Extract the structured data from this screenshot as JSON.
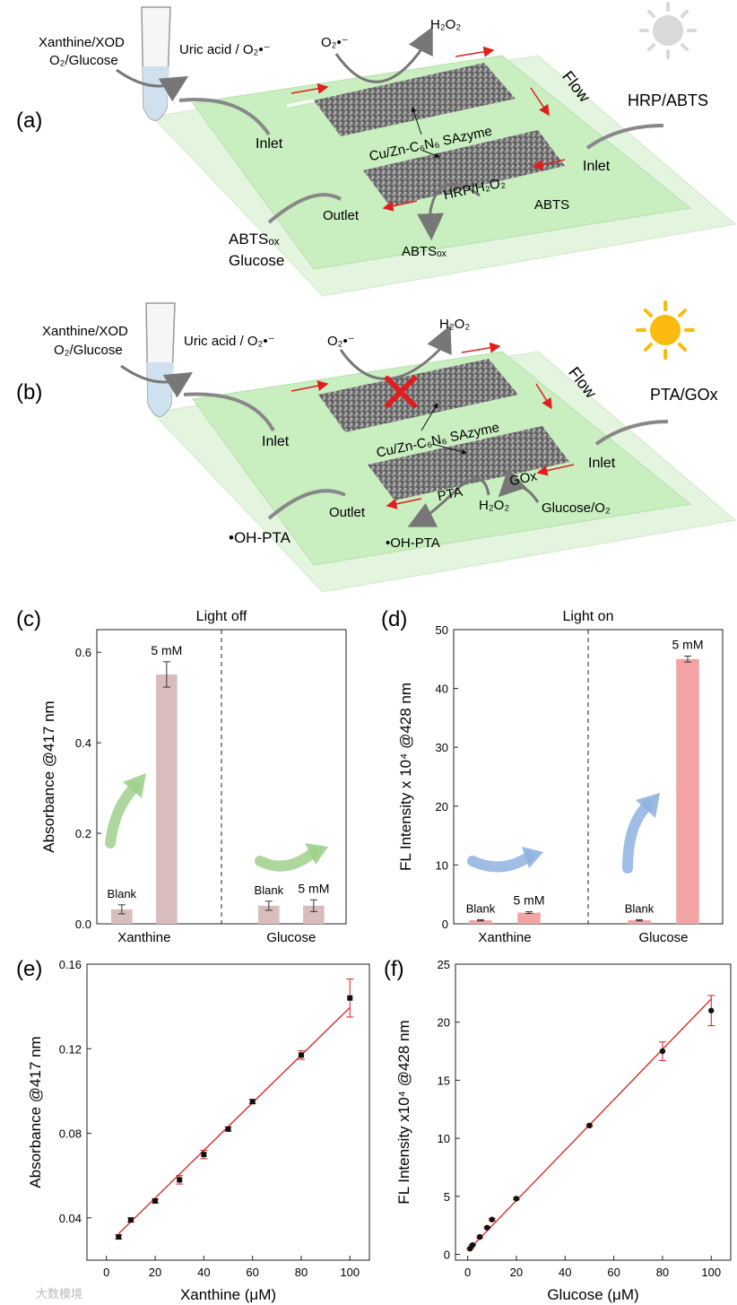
{
  "schematic": {
    "panel_a": {
      "letter": "(a)",
      "reagent_line1": "Xanthine/XOD",
      "reagent_line2": "O₂/Glucose",
      "product": "Uric acid / O₂•⁻",
      "superoxide": "O₂•⁻",
      "h2o2": "H₂O₂",
      "flow": "Flow",
      "inlet_left": "Inlet",
      "inlet_right": "Inlet",
      "right_reagent": "HRP/ABTS",
      "sazyme": "Cu/Zn-C₆N₆ SAzyme",
      "lower_reaction": "HRP/H₂O₂",
      "abts": "ABTS",
      "outlet": "Outlet",
      "abts_ox_bottom": "ABTSₒₓ",
      "out_line1": "ABTSₒₓ",
      "out_line2": "Glucose",
      "sun": "sun-off-icon"
    },
    "panel_b": {
      "letter": "(b)",
      "reagent_line1": "Xanthine/XOD",
      "reagent_line2": "O₂/Glucose",
      "product": "Uric acid / O₂•⁻",
      "superoxide": "O₂•⁻",
      "h2o2": "H₂O₂",
      "flow": "Flow",
      "inlet_left": "Inlet",
      "inlet_right": "Inlet",
      "right_reagent": "PTA/GOx",
      "sazyme": "Cu/Zn-C₆N₆ SAzyme",
      "gox": "GOx",
      "pta": "PTA",
      "h2o2_lower": "H₂O₂",
      "glucose_o2": "Glucose/O₂",
      "outlet": "Outlet",
      "oh_pta_bottom": "•OH-PTA",
      "out_label": "•OH-PTA",
      "sun": "sun-on-icon"
    }
  },
  "chart_data": [
    {
      "panel": "(c)",
      "type": "bar",
      "title": "Light off",
      "ylabel": "Absorbance @417 nm",
      "ylim": [
        0,
        0.65
      ],
      "yticks": [
        "0.0",
        "0.2",
        "0.4",
        "0.6"
      ],
      "ytick_values": [
        0,
        0.2,
        0.4,
        0.6
      ],
      "groups": [
        "Xanthine",
        "Glucose"
      ],
      "bars": [
        {
          "group": "Xanthine",
          "label": "Blank",
          "value": 0.032,
          "err": 0.01
        },
        {
          "group": "Xanthine",
          "label": "5 mM",
          "value": 0.551,
          "err": 0.028
        },
        {
          "group": "Glucose",
          "label": "Blank",
          "value": 0.04,
          "err": 0.01
        },
        {
          "group": "Glucose",
          "label": "5 mM",
          "value": 0.04,
          "err": 0.013
        }
      ],
      "color": "#d9bcbc"
    },
    {
      "panel": "(d)",
      "type": "bar",
      "title": "Light on",
      "ylabel": "FL Intensity x 10⁴ @428 nm",
      "ylim": [
        0,
        50
      ],
      "yticks": [
        "0",
        "10",
        "20",
        "30",
        "40",
        "50"
      ],
      "ytick_values": [
        0,
        10,
        20,
        30,
        40,
        50
      ],
      "groups": [
        "Xanthine",
        "Glucose"
      ],
      "bars": [
        {
          "group": "Xanthine",
          "label": "Blank",
          "value": 0.6,
          "err": 0.1
        },
        {
          "group": "Xanthine",
          "label": "5 mM",
          "value": 1.9,
          "err": 0.15
        },
        {
          "group": "Glucose",
          "label": "Blank",
          "value": 0.6,
          "err": 0.1
        },
        {
          "group": "Glucose",
          "label": "5 mM",
          "value": 45,
          "err": 0.5
        }
      ],
      "color": "#f2a3a3"
    },
    {
      "panel": "(e)",
      "type": "scatter",
      "xlabel": "Xanthine (μM)",
      "ylabel": "Absorbance @417 nm",
      "xlim": [
        -8,
        108
      ],
      "ylim": [
        0.02,
        0.16
      ],
      "xticks": [
        "0",
        "20",
        "40",
        "60",
        "80",
        "100"
      ],
      "xtick_values": [
        0,
        20,
        40,
        60,
        80,
        100
      ],
      "yticks": [
        "0.04",
        "0.08",
        "0.12",
        "0.16"
      ],
      "ytick_values": [
        0.04,
        0.08,
        0.12,
        0.16
      ],
      "x": [
        5,
        10,
        20,
        30,
        40,
        50,
        60,
        80,
        100
      ],
      "y": [
        0.031,
        0.039,
        0.048,
        0.058,
        0.07,
        0.082,
        0.095,
        0.117,
        0.144
      ],
      "err": [
        0.001,
        0.001,
        0.001,
        0.002,
        0.002,
        0.001,
        0.001,
        0.002,
        0.009
      ],
      "fit": {
        "x": [
          5,
          100
        ],
        "y": [
          0.0325,
          0.1395
        ]
      }
    },
    {
      "panel": "(f)",
      "type": "scatter",
      "xlabel": "Glucose (μM)",
      "ylabel": "FL Intensity x10⁴ @428 nm",
      "xlim": [
        -5,
        108
      ],
      "ylim": [
        -0.5,
        25
      ],
      "xticks": [
        "0",
        "20",
        "40",
        "60",
        "80",
        "100"
      ],
      "xtick_values": [
        0,
        20,
        40,
        60,
        80,
        100
      ],
      "yticks": [
        "0",
        "5",
        "10",
        "15",
        "20",
        "25"
      ],
      "ytick_values": [
        0,
        5,
        10,
        15,
        20,
        25
      ],
      "x": [
        1,
        2,
        5,
        8,
        10,
        20,
        50,
        80,
        100
      ],
      "y": [
        0.5,
        0.8,
        1.5,
        2.3,
        3.0,
        4.8,
        11.1,
        17.5,
        21.0
      ],
      "err": [
        0.05,
        0.05,
        0.1,
        0.1,
        0.1,
        0.1,
        0.1,
        0.8,
        1.3
      ],
      "fit": {
        "x": [
          0,
          100
        ],
        "y": [
          0.3,
          22.0
        ]
      }
    }
  ],
  "watermark": "大数模境"
}
